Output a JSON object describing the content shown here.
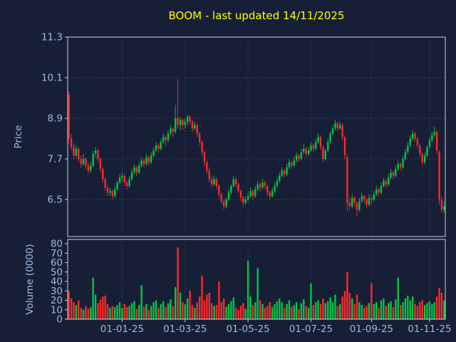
{
  "header": {
    "title": "BOOM - last updated 14/11/2025"
  },
  "chart_data": {
    "type": "candlestick",
    "title": "BOOM - last updated 14/11/2025",
    "ylabel": "Price",
    "y2label": "Volume (0000)",
    "price_ticks": [
      11.3,
      10.1,
      8.9,
      7.7,
      6.5
    ],
    "price_axis_range": [
      5.4,
      11.3
    ],
    "volume_ticks": [
      0,
      10,
      20,
      30,
      40,
      50,
      60,
      70,
      80
    ],
    "volume_axis_range": [
      0,
      80
    ],
    "x_tick_labels": [
      "01-01-25",
      "01-03-25",
      "01-05-25",
      "01-07-25",
      "01-09-25",
      "01-11-25"
    ],
    "x_tick_indices": [
      22,
      48,
      74,
      100,
      125,
      149
    ],
    "grid": true,
    "colors": {
      "up": "#00c846",
      "down": "#ff2a2a",
      "background": "#171f36",
      "labels": "#9fb8e0",
      "title": "#ffff00"
    },
    "candles_format": [
      "open",
      "high",
      "low",
      "close",
      "volume"
    ],
    "candles": [
      [
        9.6,
        9.7,
        8.15,
        8.3,
        30
      ],
      [
        8.3,
        8.45,
        7.95,
        8.05,
        22
      ],
      [
        8.05,
        8.15,
        7.7,
        7.8,
        18
      ],
      [
        7.8,
        8.1,
        7.75,
        8.0,
        15
      ],
      [
        8.0,
        8.05,
        7.6,
        7.7,
        20
      ],
      [
        7.7,
        7.8,
        7.45,
        7.55,
        12
      ],
      [
        7.55,
        7.85,
        7.5,
        7.7,
        10
      ],
      [
        7.7,
        7.75,
        7.4,
        7.5,
        14
      ],
      [
        7.5,
        7.6,
        7.25,
        7.35,
        11
      ],
      [
        7.35,
        7.6,
        7.3,
        7.5,
        13
      ],
      [
        7.5,
        7.95,
        7.45,
        7.85,
        44
      ],
      [
        7.85,
        8.05,
        7.75,
        7.95,
        26
      ],
      [
        7.95,
        8.0,
        7.6,
        7.7,
        17
      ],
      [
        7.7,
        7.75,
        7.3,
        7.4,
        21
      ],
      [
        7.4,
        7.45,
        7.0,
        7.1,
        24
      ],
      [
        7.1,
        7.15,
        6.75,
        6.85,
        25
      ],
      [
        6.85,
        6.95,
        6.6,
        6.7,
        16
      ],
      [
        6.7,
        6.85,
        6.6,
        6.75,
        12
      ],
      [
        6.75,
        6.8,
        6.5,
        6.6,
        14
      ],
      [
        6.6,
        6.9,
        6.55,
        6.8,
        13
      ],
      [
        6.8,
        7.05,
        6.75,
        7.0,
        15
      ],
      [
        7.0,
        7.25,
        6.95,
        7.15,
        18
      ],
      [
        7.15,
        7.3,
        7.05,
        7.2,
        12
      ],
      [
        7.2,
        7.25,
        6.9,
        7.0,
        16
      ],
      [
        7.0,
        7.05,
        6.8,
        6.9,
        13
      ],
      [
        6.9,
        7.2,
        6.85,
        7.1,
        14
      ],
      [
        7.1,
        7.4,
        7.05,
        7.3,
        17
      ],
      [
        7.3,
        7.55,
        7.25,
        7.45,
        19
      ],
      [
        7.45,
        7.5,
        7.2,
        7.3,
        11
      ],
      [
        7.3,
        7.6,
        7.25,
        7.5,
        15
      ],
      [
        7.5,
        7.75,
        7.45,
        7.65,
        36
      ],
      [
        7.65,
        7.7,
        7.45,
        7.55,
        13
      ],
      [
        7.55,
        7.85,
        7.5,
        7.75,
        16
      ],
      [
        7.75,
        7.8,
        7.5,
        7.6,
        10
      ],
      [
        7.6,
        7.9,
        7.55,
        7.8,
        14
      ],
      [
        7.8,
        8.05,
        7.75,
        7.95,
        18
      ],
      [
        7.95,
        8.2,
        7.9,
        8.1,
        20
      ],
      [
        8.1,
        8.15,
        7.9,
        8.0,
        12
      ],
      [
        8.0,
        8.3,
        7.95,
        8.2,
        16
      ],
      [
        8.2,
        8.45,
        8.15,
        8.35,
        19
      ],
      [
        8.35,
        8.4,
        8.1,
        8.25,
        13
      ],
      [
        8.25,
        8.55,
        8.2,
        8.45,
        17
      ],
      [
        8.45,
        8.7,
        8.4,
        8.6,
        21
      ],
      [
        8.6,
        8.65,
        8.35,
        8.5,
        14
      ],
      [
        8.5,
        9.3,
        8.45,
        8.9,
        34
      ],
      [
        8.9,
        10.05,
        8.6,
        8.7,
        76
      ],
      [
        8.7,
        8.95,
        8.55,
        8.85,
        28
      ],
      [
        8.85,
        8.9,
        8.55,
        8.7,
        18
      ],
      [
        8.7,
        8.9,
        8.6,
        8.8,
        16
      ],
      [
        8.8,
        9.0,
        8.7,
        8.95,
        22
      ],
      [
        8.95,
        9.0,
        8.7,
        8.8,
        30
      ],
      [
        8.8,
        8.85,
        8.5,
        8.6,
        15
      ],
      [
        8.6,
        8.8,
        8.55,
        8.7,
        12
      ],
      [
        8.7,
        8.75,
        8.35,
        8.45,
        18
      ],
      [
        8.45,
        8.5,
        8.1,
        8.2,
        24
      ],
      [
        8.2,
        8.25,
        7.8,
        7.9,
        46
      ],
      [
        7.9,
        7.95,
        7.5,
        7.6,
        20
      ],
      [
        7.6,
        7.65,
        7.25,
        7.35,
        26
      ],
      [
        7.35,
        7.45,
        7.0,
        7.1,
        28
      ],
      [
        7.1,
        7.2,
        6.85,
        6.95,
        17
      ],
      [
        6.95,
        7.2,
        6.9,
        7.1,
        14
      ],
      [
        7.1,
        7.15,
        6.8,
        6.9,
        15
      ],
      [
        6.9,
        6.95,
        6.55,
        6.65,
        40
      ],
      [
        6.65,
        6.7,
        6.35,
        6.45,
        18
      ],
      [
        6.45,
        6.5,
        6.2,
        6.3,
        22
      ],
      [
        6.3,
        6.55,
        6.25,
        6.5,
        13
      ],
      [
        6.5,
        6.8,
        6.45,
        6.7,
        16
      ],
      [
        6.7,
        6.95,
        6.65,
        6.9,
        19
      ],
      [
        6.9,
        7.2,
        6.85,
        7.1,
        23
      ],
      [
        7.1,
        7.15,
        6.85,
        6.95,
        12
      ],
      [
        6.95,
        7.0,
        6.7,
        6.75,
        10
      ],
      [
        6.75,
        6.8,
        6.45,
        6.55,
        14
      ],
      [
        6.55,
        6.6,
        6.3,
        6.4,
        17
      ],
      [
        6.4,
        6.6,
        6.35,
        6.5,
        11
      ],
      [
        6.5,
        6.7,
        6.45,
        6.6,
        62
      ],
      [
        6.6,
        6.85,
        6.55,
        6.75,
        24
      ],
      [
        6.75,
        6.8,
        6.5,
        6.6,
        15
      ],
      [
        6.6,
        6.9,
        6.55,
        6.8,
        18
      ],
      [
        6.8,
        7.05,
        6.75,
        6.95,
        54
      ],
      [
        6.95,
        7.0,
        6.75,
        6.85,
        20
      ],
      [
        6.85,
        7.1,
        6.8,
        7.0,
        16
      ],
      [
        7.0,
        7.05,
        6.8,
        6.9,
        12
      ],
      [
        6.9,
        6.95,
        6.6,
        6.7,
        14
      ],
      [
        6.7,
        6.75,
        6.5,
        6.6,
        18
      ],
      [
        6.6,
        6.85,
        6.55,
        6.75,
        13
      ],
      [
        6.75,
        7.0,
        6.7,
        6.9,
        16
      ],
      [
        6.9,
        7.15,
        6.85,
        7.05,
        19
      ],
      [
        7.05,
        7.3,
        7.0,
        7.2,
        22
      ],
      [
        7.2,
        7.45,
        7.15,
        7.35,
        18
      ],
      [
        7.35,
        7.4,
        7.15,
        7.25,
        12
      ],
      [
        7.25,
        7.55,
        7.2,
        7.45,
        16
      ],
      [
        7.45,
        7.7,
        7.4,
        7.6,
        20
      ],
      [
        7.6,
        7.65,
        7.4,
        7.5,
        13
      ],
      [
        7.5,
        7.75,
        7.45,
        7.65,
        15
      ],
      [
        7.65,
        7.9,
        7.6,
        7.8,
        18
      ],
      [
        7.8,
        7.85,
        7.6,
        7.7,
        11
      ],
      [
        7.7,
        8.0,
        7.65,
        7.9,
        17
      ],
      [
        7.9,
        8.15,
        7.85,
        8.0,
        21
      ],
      [
        8.0,
        8.05,
        7.75,
        7.85,
        14
      ],
      [
        7.85,
        8.05,
        7.8,
        7.95,
        12
      ],
      [
        7.95,
        8.2,
        7.9,
        8.1,
        38
      ],
      [
        8.1,
        8.15,
        7.9,
        8.0,
        15
      ],
      [
        8.0,
        8.3,
        7.95,
        8.2,
        18
      ],
      [
        8.2,
        8.45,
        8.15,
        8.35,
        20
      ],
      [
        8.35,
        8.4,
        7.95,
        8.05,
        16
      ],
      [
        8.05,
        8.1,
        7.6,
        7.7,
        22
      ],
      [
        7.7,
        8.0,
        7.65,
        7.95,
        17
      ],
      [
        7.95,
        8.3,
        7.9,
        8.2,
        19
      ],
      [
        8.2,
        8.5,
        8.15,
        8.45,
        23
      ],
      [
        8.45,
        8.7,
        8.4,
        8.6,
        18
      ],
      [
        8.6,
        8.85,
        8.55,
        8.75,
        26
      ],
      [
        8.75,
        8.8,
        8.5,
        8.6,
        14
      ],
      [
        8.6,
        8.8,
        8.55,
        8.7,
        16
      ],
      [
        8.7,
        8.75,
        8.25,
        8.35,
        24
      ],
      [
        8.35,
        8.4,
        7.7,
        7.8,
        30
      ],
      [
        7.75,
        7.8,
        6.15,
        6.4,
        50
      ],
      [
        6.4,
        6.55,
        6.2,
        6.3,
        28
      ],
      [
        6.3,
        6.65,
        6.25,
        6.55,
        22
      ],
      [
        6.55,
        6.6,
        6.3,
        6.4,
        16
      ],
      [
        6.4,
        6.45,
        6.0,
        6.2,
        26
      ],
      [
        6.2,
        6.55,
        6.15,
        6.45,
        18
      ],
      [
        6.45,
        6.7,
        6.4,
        6.6,
        15
      ],
      [
        6.6,
        6.65,
        6.4,
        6.5,
        12
      ],
      [
        6.5,
        6.55,
        6.25,
        6.35,
        14
      ],
      [
        6.35,
        6.65,
        6.3,
        6.55,
        17
      ],
      [
        6.55,
        6.6,
        6.35,
        6.5,
        38
      ],
      [
        6.5,
        6.75,
        6.45,
        6.65,
        16
      ],
      [
        6.65,
        6.9,
        6.6,
        6.8,
        18
      ],
      [
        6.8,
        6.85,
        6.6,
        6.7,
        12
      ],
      [
        6.7,
        7.0,
        6.65,
        6.9,
        20
      ],
      [
        6.9,
        7.15,
        6.85,
        7.05,
        22
      ],
      [
        7.05,
        7.1,
        6.85,
        6.95,
        14
      ],
      [
        6.95,
        7.25,
        6.9,
        7.15,
        17
      ],
      [
        7.15,
        7.4,
        7.1,
        7.3,
        19
      ],
      [
        7.3,
        7.35,
        7.1,
        7.2,
        13
      ],
      [
        7.2,
        7.5,
        7.15,
        7.4,
        21
      ],
      [
        7.4,
        7.65,
        7.35,
        7.55,
        44
      ],
      [
        7.55,
        7.6,
        7.35,
        7.45,
        15
      ],
      [
        7.45,
        7.8,
        7.4,
        7.7,
        18
      ],
      [
        7.7,
        8.0,
        7.65,
        7.9,
        22
      ],
      [
        7.9,
        8.2,
        7.85,
        8.1,
        25
      ],
      [
        8.1,
        8.4,
        8.05,
        8.3,
        20
      ],
      [
        8.3,
        8.55,
        8.25,
        8.45,
        24
      ],
      [
        8.45,
        8.5,
        8.2,
        8.3,
        16
      ],
      [
        8.3,
        8.35,
        8.0,
        8.1,
        14
      ],
      [
        8.1,
        8.15,
        7.75,
        7.85,
        18
      ],
      [
        7.85,
        7.9,
        7.5,
        7.6,
        20
      ],
      [
        7.6,
        7.9,
        7.55,
        7.8,
        15
      ],
      [
        7.8,
        8.1,
        7.75,
        8.05,
        17
      ],
      [
        8.05,
        8.35,
        8.0,
        8.25,
        19
      ],
      [
        8.25,
        8.5,
        8.2,
        8.4,
        16
      ],
      [
        8.4,
        8.65,
        8.35,
        8.5,
        18
      ],
      [
        8.5,
        8.55,
        7.85,
        7.95,
        24
      ],
      [
        7.9,
        7.95,
        6.35,
        6.5,
        33
      ],
      [
        6.5,
        6.6,
        6.1,
        6.2,
        28
      ],
      [
        6.2,
        6.45,
        6.1,
        6.3,
        20
      ]
    ]
  }
}
